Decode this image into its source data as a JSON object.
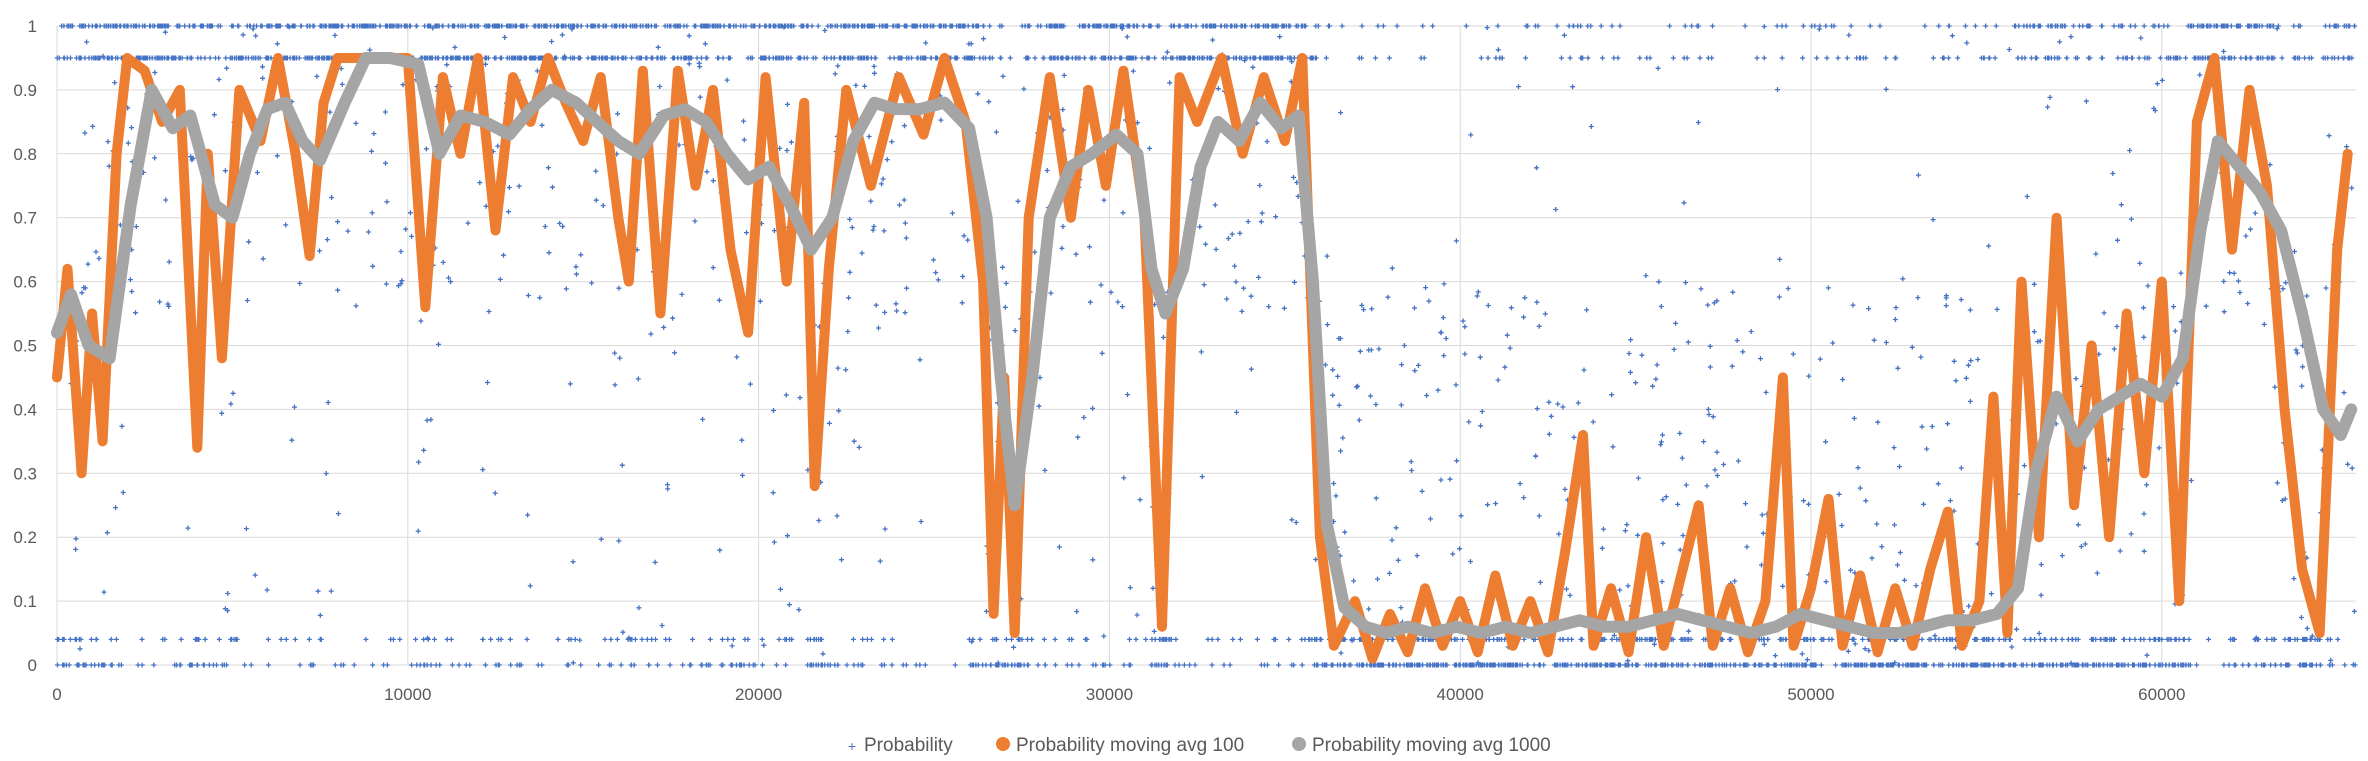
{
  "chart_data": {
    "type": "scatter",
    "title": "",
    "xlabel": "",
    "ylabel": "",
    "xlim": [
      0,
      65536
    ],
    "ylim": [
      0,
      1
    ],
    "x_ticks": [
      "0",
      "10000",
      "20000",
      "30000",
      "40000",
      "50000",
      "60000"
    ],
    "y_ticks": [
      "0",
      "0.1",
      "0.2",
      "0.3",
      "0.4",
      "0.5",
      "0.6",
      "0.7",
      "0.8",
      "0.9",
      "1"
    ],
    "grid": true,
    "legend_position": "bottom",
    "series": [
      {
        "name": "Probability",
        "kind": "scatter-markers",
        "color": "#4472C4",
        "values_note_levels": [
          0,
          0.04,
          0.35,
          0.63,
          0.75,
          0.87,
          0.95,
          1
        ]
      },
      {
        "name": "Probability moving avg 100",
        "kind": "line",
        "color": "#ED7D31",
        "points": [
          [
            0,
            0.45
          ],
          [
            300,
            0.62
          ],
          [
            700,
            0.3
          ],
          [
            1000,
            0.55
          ],
          [
            1300,
            0.35
          ],
          [
            1700,
            0.8
          ],
          [
            2000,
            0.95
          ],
          [
            2500,
            0.93
          ],
          [
            3000,
            0.85
          ],
          [
            3500,
            0.9
          ],
          [
            4000,
            0.34
          ],
          [
            4300,
            0.8
          ],
          [
            4700,
            0.48
          ],
          [
            5200,
            0.9
          ],
          [
            5800,
            0.82
          ],
          [
            6300,
            0.95
          ],
          [
            6800,
            0.8
          ],
          [
            7200,
            0.64
          ],
          [
            7600,
            0.88
          ],
          [
            8000,
            0.95
          ],
          [
            9000,
            0.95
          ],
          [
            10000,
            0.95
          ],
          [
            10500,
            0.56
          ],
          [
            11000,
            0.92
          ],
          [
            11500,
            0.8
          ],
          [
            12000,
            0.95
          ],
          [
            12500,
            0.68
          ],
          [
            13000,
            0.92
          ],
          [
            13500,
            0.85
          ],
          [
            14000,
            0.95
          ],
          [
            14500,
            0.88
          ],
          [
            15000,
            0.82
          ],
          [
            15500,
            0.92
          ],
          [
            16000,
            0.7
          ],
          [
            16300,
            0.6
          ],
          [
            16700,
            0.93
          ],
          [
            17200,
            0.55
          ],
          [
            17700,
            0.93
          ],
          [
            18200,
            0.75
          ],
          [
            18700,
            0.9
          ],
          [
            19200,
            0.65
          ],
          [
            19700,
            0.52
          ],
          [
            20200,
            0.92
          ],
          [
            20800,
            0.6
          ],
          [
            21300,
            0.88
          ],
          [
            21600,
            0.28
          ],
          [
            22000,
            0.62
          ],
          [
            22500,
            0.9
          ],
          [
            23200,
            0.75
          ],
          [
            24000,
            0.92
          ],
          [
            24700,
            0.83
          ],
          [
            25300,
            0.95
          ],
          [
            25900,
            0.85
          ],
          [
            26400,
            0.6
          ],
          [
            26700,
            0.08
          ],
          [
            27000,
            0.45
          ],
          [
            27300,
            0.05
          ],
          [
            27700,
            0.7
          ],
          [
            28300,
            0.92
          ],
          [
            28900,
            0.7
          ],
          [
            29400,
            0.9
          ],
          [
            29900,
            0.75
          ],
          [
            30400,
            0.93
          ],
          [
            31000,
            0.7
          ],
          [
            31500,
            0.06
          ],
          [
            32000,
            0.92
          ],
          [
            32500,
            0.85
          ],
          [
            33200,
            0.95
          ],
          [
            33800,
            0.8
          ],
          [
            34400,
            0.92
          ],
          [
            35000,
            0.82
          ],
          [
            35500,
            0.95
          ],
          [
            36000,
            0.2
          ],
          [
            36400,
            0.03
          ],
          [
            37000,
            0.1
          ],
          [
            37500,
            0.01
          ],
          [
            38000,
            0.08
          ],
          [
            38500,
            0.02
          ],
          [
            39000,
            0.12
          ],
          [
            39500,
            0.03
          ],
          [
            40000,
            0.1
          ],
          [
            40500,
            0.02
          ],
          [
            41000,
            0.14
          ],
          [
            41500,
            0.03
          ],
          [
            42000,
            0.1
          ],
          [
            42500,
            0.02
          ],
          [
            43000,
            0.18
          ],
          [
            43500,
            0.36
          ],
          [
            43800,
            0.03
          ],
          [
            44300,
            0.12
          ],
          [
            44800,
            0.02
          ],
          [
            45300,
            0.2
          ],
          [
            45800,
            0.03
          ],
          [
            46300,
            0.14
          ],
          [
            46800,
            0.25
          ],
          [
            47200,
            0.03
          ],
          [
            47700,
            0.12
          ],
          [
            48200,
            0.02
          ],
          [
            48700,
            0.1
          ],
          [
            49200,
            0.45
          ],
          [
            49500,
            0.03
          ],
          [
            50000,
            0.12
          ],
          [
            50500,
            0.26
          ],
          [
            50900,
            0.03
          ],
          [
            51400,
            0.14
          ],
          [
            51900,
            0.02
          ],
          [
            52400,
            0.12
          ],
          [
            52900,
            0.03
          ],
          [
            53400,
            0.15
          ],
          [
            53900,
            0.24
          ],
          [
            54300,
            0.03
          ],
          [
            54800,
            0.1
          ],
          [
            55200,
            0.42
          ],
          [
            55600,
            0.05
          ],
          [
            56000,
            0.6
          ],
          [
            56500,
            0.2
          ],
          [
            57000,
            0.7
          ],
          [
            57500,
            0.25
          ],
          [
            58000,
            0.5
          ],
          [
            58500,
            0.2
          ],
          [
            59000,
            0.55
          ],
          [
            59500,
            0.3
          ],
          [
            60000,
            0.6
          ],
          [
            60500,
            0.1
          ],
          [
            61000,
            0.85
          ],
          [
            61500,
            0.95
          ],
          [
            62000,
            0.65
          ],
          [
            62500,
            0.9
          ],
          [
            63000,
            0.75
          ],
          [
            63500,
            0.4
          ],
          [
            64000,
            0.15
          ],
          [
            64500,
            0.05
          ],
          [
            65000,
            0.65
          ],
          [
            65300,
            0.8
          ]
        ]
      },
      {
        "name": "Probability moving avg 1000",
        "kind": "line",
        "color": "#A5A5A5",
        "points": [
          [
            0,
            0.52
          ],
          [
            400,
            0.58
          ],
          [
            900,
            0.5
          ],
          [
            1500,
            0.48
          ],
          [
            2100,
            0.72
          ],
          [
            2700,
            0.9
          ],
          [
            3300,
            0.84
          ],
          [
            3800,
            0.86
          ],
          [
            4500,
            0.72
          ],
          [
            5000,
            0.7
          ],
          [
            5500,
            0.8
          ],
          [
            6000,
            0.87
          ],
          [
            6500,
            0.88
          ],
          [
            7000,
            0.82
          ],
          [
            7500,
            0.79
          ],
          [
            8200,
            0.88
          ],
          [
            8800,
            0.95
          ],
          [
            9500,
            0.95
          ],
          [
            10300,
            0.94
          ],
          [
            10900,
            0.8
          ],
          [
            11500,
            0.86
          ],
          [
            12200,
            0.85
          ],
          [
            12900,
            0.83
          ],
          [
            13500,
            0.87
          ],
          [
            14100,
            0.9
          ],
          [
            14800,
            0.88
          ],
          [
            15400,
            0.85
          ],
          [
            16000,
            0.82
          ],
          [
            16600,
            0.8
          ],
          [
            17300,
            0.86
          ],
          [
            17900,
            0.87
          ],
          [
            18500,
            0.85
          ],
          [
            19100,
            0.8
          ],
          [
            19700,
            0.76
          ],
          [
            20300,
            0.78
          ],
          [
            20900,
            0.72
          ],
          [
            21500,
            0.65
          ],
          [
            22100,
            0.7
          ],
          [
            22700,
            0.82
          ],
          [
            23300,
            0.88
          ],
          [
            23900,
            0.87
          ],
          [
            24600,
            0.87
          ],
          [
            25300,
            0.88
          ],
          [
            26000,
            0.84
          ],
          [
            26500,
            0.7
          ],
          [
            26900,
            0.45
          ],
          [
            27300,
            0.25
          ],
          [
            27800,
            0.45
          ],
          [
            28300,
            0.7
          ],
          [
            28900,
            0.78
          ],
          [
            29500,
            0.8
          ],
          [
            30200,
            0.83
          ],
          [
            30800,
            0.8
          ],
          [
            31200,
            0.62
          ],
          [
            31600,
            0.55
          ],
          [
            32100,
            0.62
          ],
          [
            32600,
            0.78
          ],
          [
            33100,
            0.85
          ],
          [
            33700,
            0.82
          ],
          [
            34300,
            0.88
          ],
          [
            34900,
            0.84
          ],
          [
            35400,
            0.86
          ],
          [
            35800,
            0.6
          ],
          [
            36200,
            0.22
          ],
          [
            36700,
            0.09
          ],
          [
            37300,
            0.06
          ],
          [
            37900,
            0.05
          ],
          [
            38500,
            0.06
          ],
          [
            39200,
            0.05
          ],
          [
            39900,
            0.06
          ],
          [
            40600,
            0.05
          ],
          [
            41300,
            0.06
          ],
          [
            42000,
            0.05
          ],
          [
            42700,
            0.06
          ],
          [
            43400,
            0.07
          ],
          [
            44100,
            0.06
          ],
          [
            44800,
            0.06
          ],
          [
            45500,
            0.07
          ],
          [
            46200,
            0.08
          ],
          [
            46900,
            0.07
          ],
          [
            47600,
            0.06
          ],
          [
            48300,
            0.05
          ],
          [
            49000,
            0.06
          ],
          [
            49700,
            0.08
          ],
          [
            50400,
            0.07
          ],
          [
            51100,
            0.06
          ],
          [
            51800,
            0.05
          ],
          [
            52500,
            0.05
          ],
          [
            53200,
            0.06
          ],
          [
            53900,
            0.07
          ],
          [
            54600,
            0.07
          ],
          [
            55300,
            0.08
          ],
          [
            55900,
            0.12
          ],
          [
            56400,
            0.3
          ],
          [
            57000,
            0.42
          ],
          [
            57600,
            0.35
          ],
          [
            58200,
            0.4
          ],
          [
            58800,
            0.42
          ],
          [
            59400,
            0.44
          ],
          [
            60000,
            0.42
          ],
          [
            60600,
            0.48
          ],
          [
            61100,
            0.68
          ],
          [
            61600,
            0.82
          ],
          [
            62200,
            0.78
          ],
          [
            62800,
            0.74
          ],
          [
            63400,
            0.68
          ],
          [
            64000,
            0.55
          ],
          [
            64600,
            0.4
          ],
          [
            65100,
            0.36
          ],
          [
            65400,
            0.4
          ]
        ]
      }
    ]
  }
}
